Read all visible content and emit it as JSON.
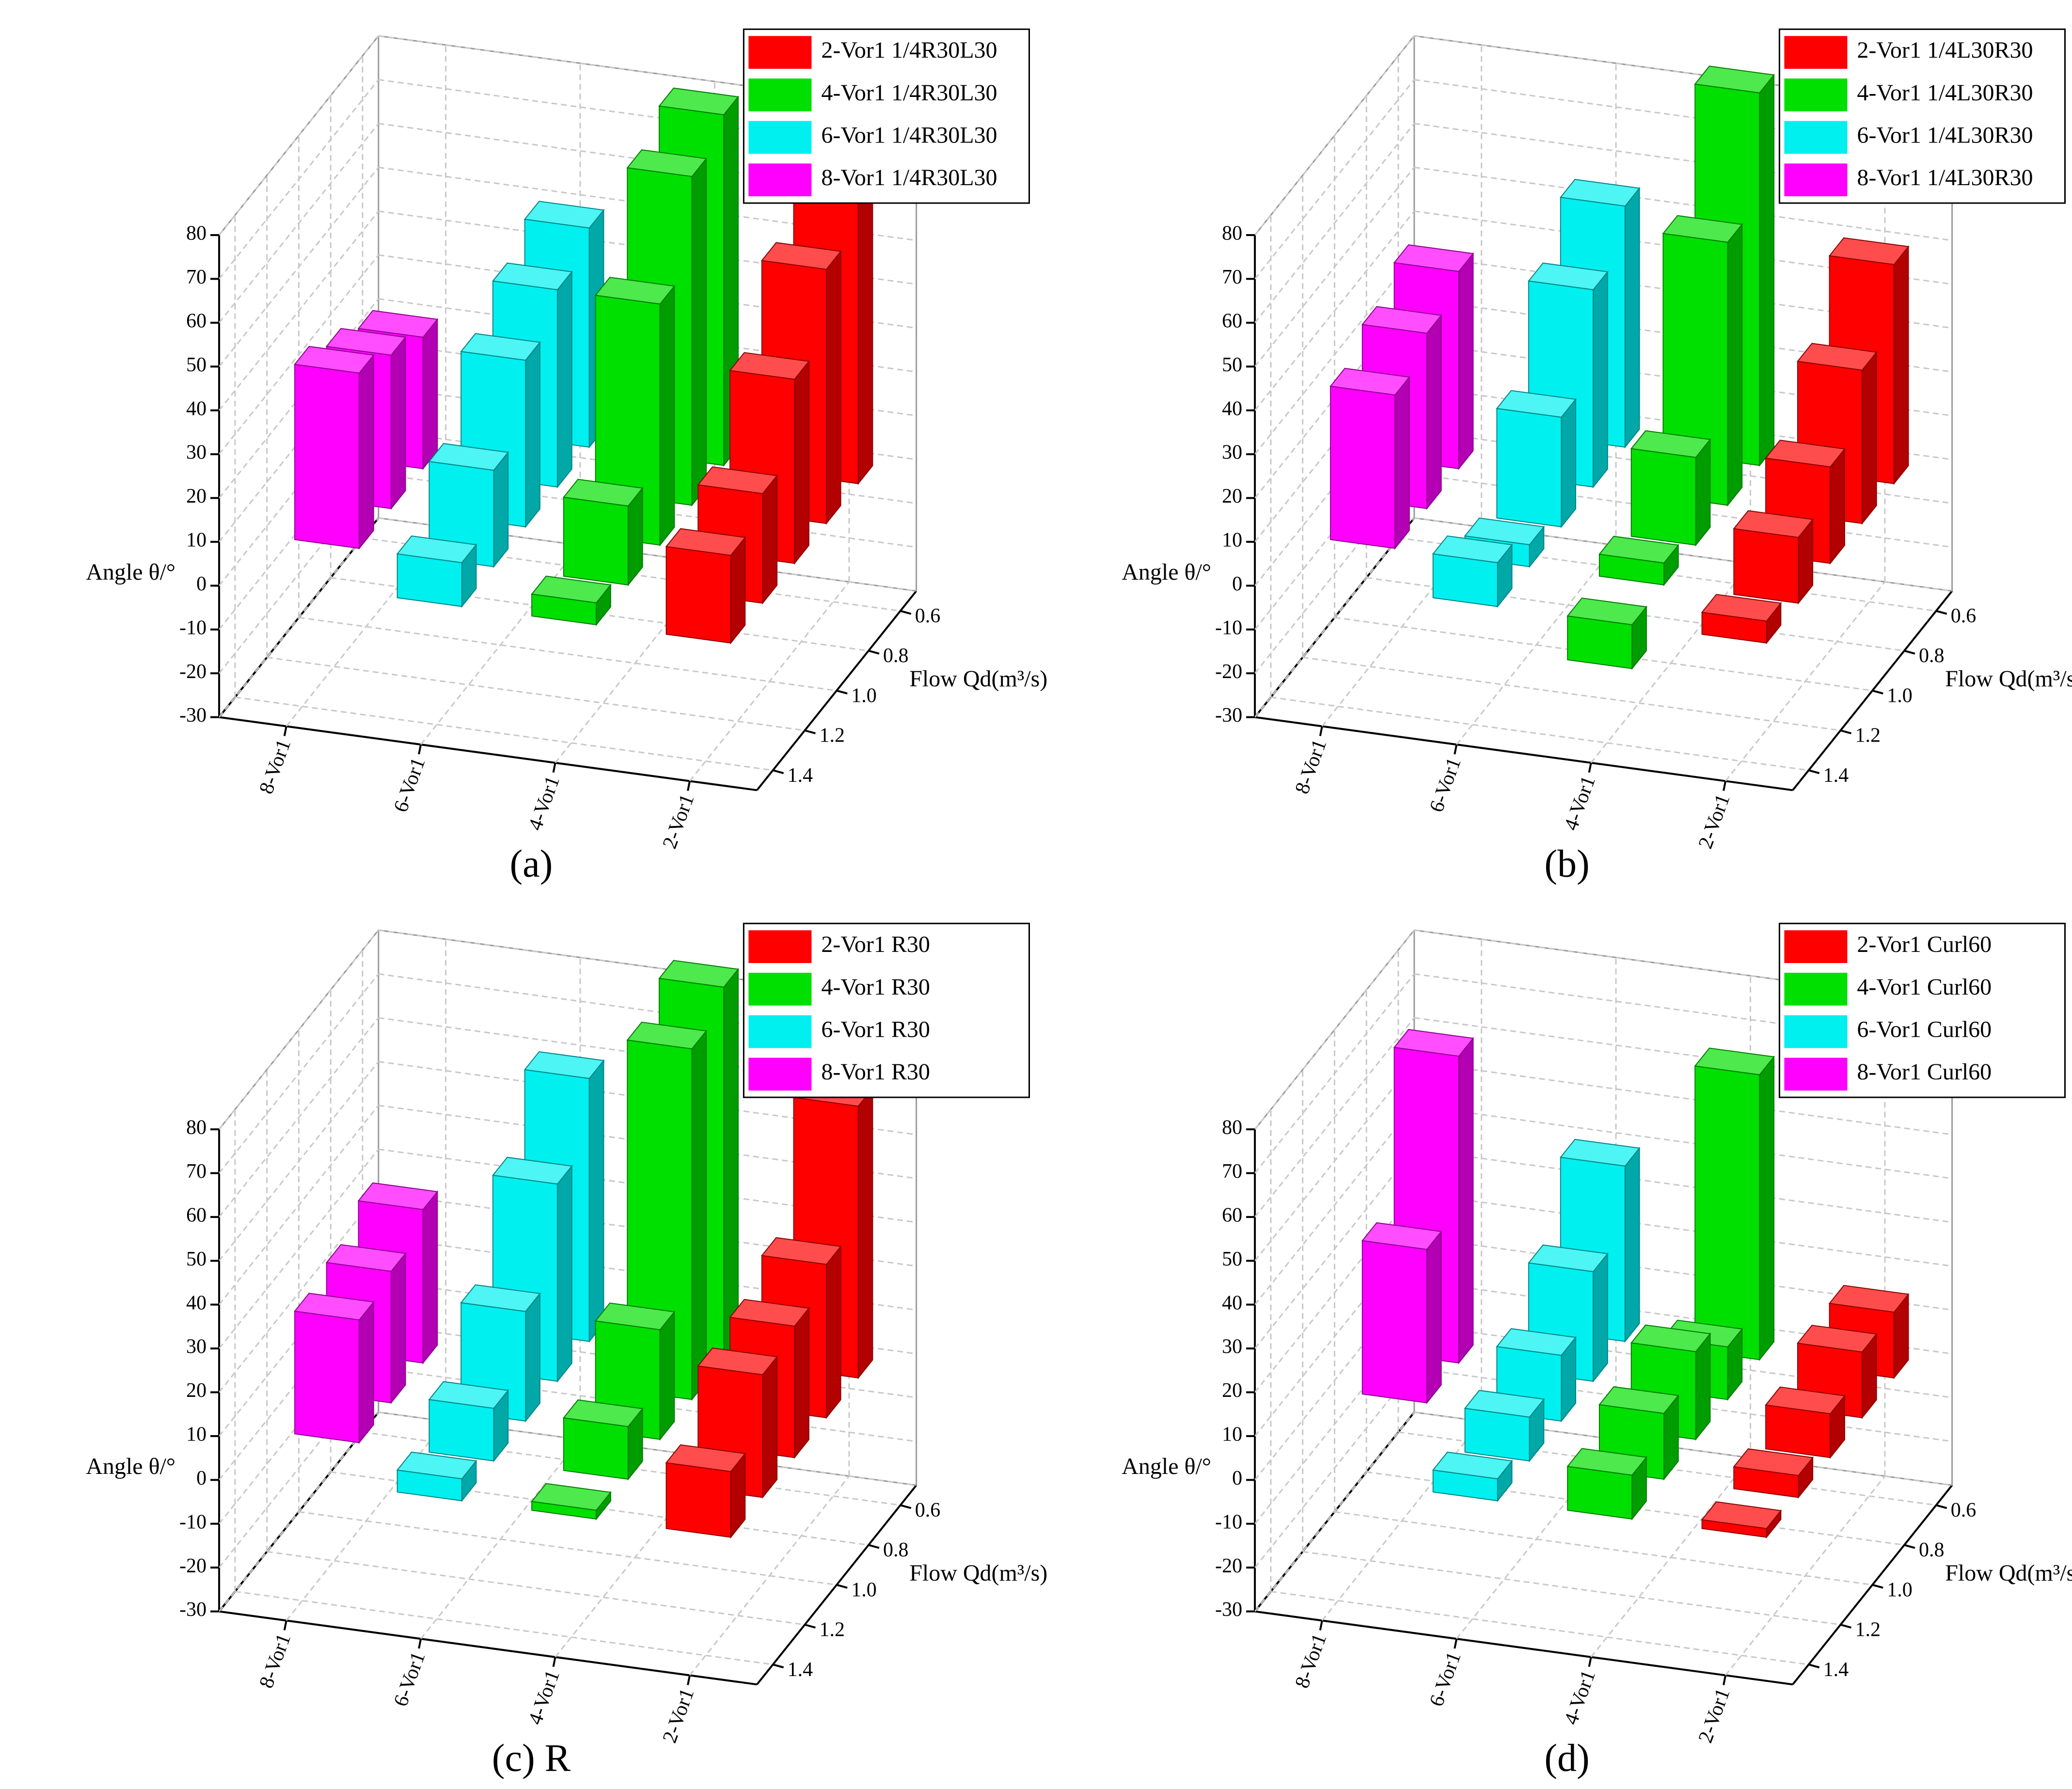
{
  "chart_data": [
    {
      "type": "bar3d",
      "caption": "(a)",
      "zlabel": "Angle θ/°",
      "ylabel": "Flow Qd(m³/s)",
      "categories": [
        "8-Vor1",
        "6-Vor1",
        "4-Vor1",
        "2-Vor1"
      ],
      "x": [
        0.6,
        0.8,
        {
          "value": 1,
          "label": "1.0"
        },
        1.2,
        1.4
      ],
      "ylim": [
        0.5,
        1.5
      ],
      "yticks": [
        0.6,
        0.8,
        {
          "value": 1,
          "label": "1.0"
        },
        1.2,
        1.4
      ],
      "zlim": [
        -30,
        80
      ],
      "zticks": [
        -30,
        -20,
        -10,
        0,
        10,
        20,
        30,
        40,
        50,
        60,
        70,
        80
      ],
      "grid": true,
      "series": [
        {
          "name": "2-Vor1 1/4R30L30",
          "color": "#ff0000",
          "values": [
            75,
            58,
            42,
            25,
            20
          ]
        },
        {
          "name": "4-Vor1 1/4R30L30",
          "color": "#00e000",
          "values": [
            80,
            75,
            55,
            18,
            5
          ]
        },
        {
          "name": "6-Vor1 1/4R30L30",
          "color": "#00f0f0",
          "values": [
            50,
            45,
            38,
            22,
            10
          ]
        },
        {
          "name": "8-Vor1 1/4R30L30",
          "color": "#ff00ff",
          "values": [
            null,
            30,
            35,
            40,
            null
          ]
        }
      ]
    },
    {
      "type": "bar3d",
      "caption": "(b)",
      "zlabel": "Angle θ/°",
      "ylabel": "Flow Qd(m³/s)",
      "categories": [
        "8-Vor1",
        "6-Vor1",
        "4-Vor1",
        "2-Vor1"
      ],
      "x": [
        0.6,
        0.8,
        {
          "value": 1,
          "label": "1.0"
        },
        1.2,
        1.4
      ],
      "ylim": [
        0.5,
        1.5
      ],
      "yticks": [
        0.6,
        0.8,
        {
          "value": 1,
          "label": "1.0"
        },
        1.2,
        1.4
      ],
      "zlim": [
        -30,
        80
      ],
      "zticks": [
        -30,
        -20,
        -10,
        0,
        10,
        20,
        30,
        40,
        50,
        60,
        70,
        80
      ],
      "grid": true,
      "series": [
        {
          "name": "2-Vor1 1/4L30R30",
          "color": "#ff0000",
          "values": [
            50,
            35,
            22,
            15,
            5
          ]
        },
        {
          "name": "4-Vor1 1/4L30R30",
          "color": "#00e000",
          "values": [
            85,
            60,
            20,
            5,
            -10
          ]
        },
        {
          "name": "6-Vor1 1/4L30R30",
          "color": "#00f0f0",
          "values": [
            55,
            45,
            25,
            5,
            10
          ]
        },
        {
          "name": "8-Vor1 1/4L30R30",
          "color": "#ff00ff",
          "values": [
            null,
            45,
            40,
            35,
            null
          ]
        }
      ]
    },
    {
      "type": "bar3d",
      "caption": "(c) R",
      "zlabel": "Angle θ/°",
      "ylabel": "Flow Qd(m³/s)",
      "categories": [
        "8-Vor1",
        "6-Vor1",
        "4-Vor1",
        "2-Vor1"
      ],
      "x": [
        0.6,
        0.8,
        {
          "value": 1,
          "label": "1.0"
        },
        1.2,
        1.4
      ],
      "ylim": [
        0.5,
        1.5
      ],
      "yticks": [
        0.6,
        0.8,
        {
          "value": 1,
          "label": "1.0"
        },
        1.2,
        1.4
      ],
      "zlim": [
        -30,
        80
      ],
      "zticks": [
        -30,
        -20,
        -10,
        0,
        10,
        20,
        30,
        40,
        50,
        60,
        70,
        80
      ],
      "grid": true,
      "series": [
        {
          "name": "2-Vor1 R30",
          "color": "#ff0000",
          "values": [
            62,
            35,
            30,
            28,
            15
          ]
        },
        {
          "name": "4-Vor1 R30",
          "color": "#00e000",
          "values": [
            85,
            80,
            25,
            12,
            2
          ]
        },
        {
          "name": "6-Vor1 R30",
          "color": "#00f0f0",
          "values": [
            60,
            45,
            25,
            12,
            5
          ]
        },
        {
          "name": "8-Vor1 R30",
          "color": "#ff00ff",
          "values": [
            null,
            35,
            30,
            28,
            null
          ]
        }
      ]
    },
    {
      "type": "bar3d",
      "caption": "(d)",
      "zlabel": "Angle θ/°",
      "ylabel": "Flow Qd(m³/s)",
      "categories": [
        "8-Vor1",
        "6-Vor1",
        "4-Vor1",
        "2-Vor1"
      ],
      "x": [
        0.6,
        0.8,
        {
          "value": 1,
          "label": "1.0"
        },
        1.2,
        1.4
      ],
      "ylim": [
        0.5,
        1.5
      ],
      "yticks": [
        0.6,
        0.8,
        {
          "value": 1,
          "label": "1.0"
        },
        1.2,
        1.4
      ],
      "zlim": [
        -30,
        80
      ],
      "zticks": [
        -30,
        -20,
        -10,
        0,
        10,
        20,
        30,
        40,
        50,
        60,
        70,
        80
      ],
      "grid": true,
      "series": [
        {
          "name": "2-Vor1 Curl60",
          "color": "#ff0000",
          "values": [
            15,
            15,
            10,
            5,
            2
          ]
        },
        {
          "name": "4-Vor1 Curl60",
          "color": "#00e000",
          "values": [
            65,
            12,
            20,
            15,
            10
          ]
        },
        {
          "name": "6-Vor1 Curl60",
          "color": "#00f0f0",
          "values": [
            40,
            25,
            15,
            10,
            5
          ]
        },
        {
          "name": "8-Vor1 Curl60",
          "color": "#ff00ff",
          "values": [
            null,
            70,
            35,
            null,
            null
          ]
        }
      ]
    }
  ]
}
